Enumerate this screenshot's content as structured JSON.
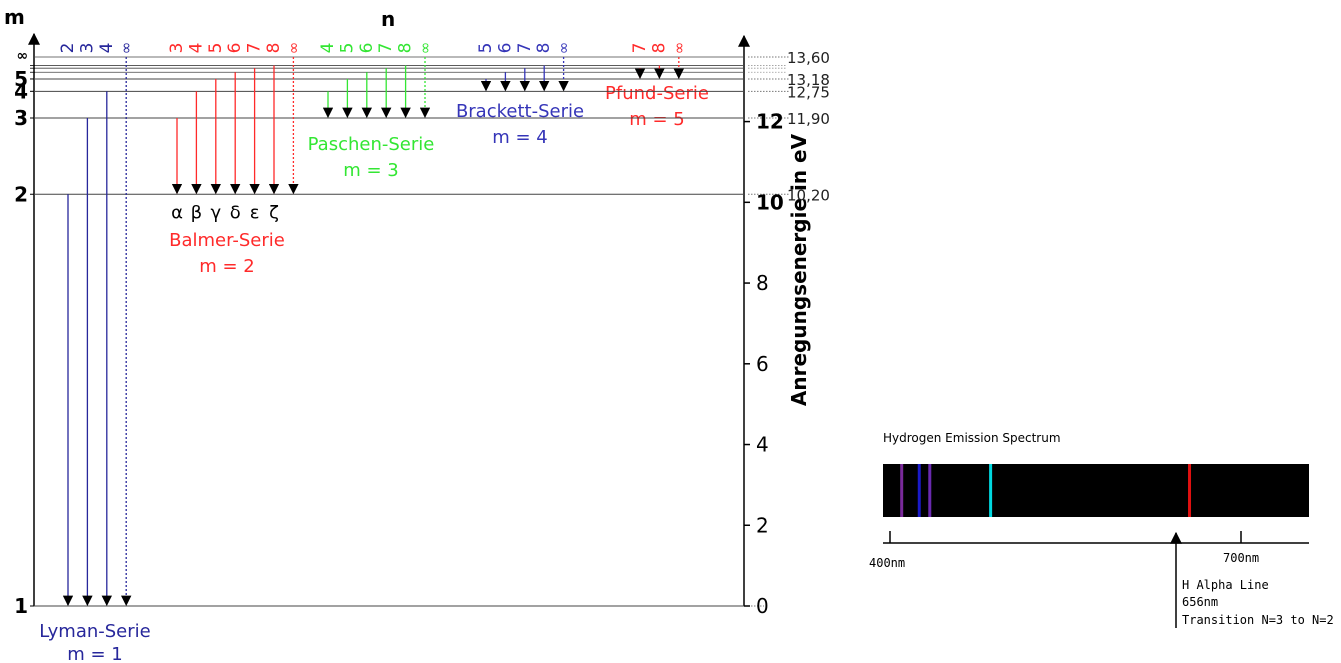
{
  "colors": {
    "lyman": "#27279b",
    "balmer": "#ff2a2a",
    "paschen": "#33e633",
    "brackett": "#3535b8",
    "pfund": "#ff2a2a",
    "axis": "#000000",
    "levels": "#444444",
    "dotted": "#777777",
    "spectrum_bg": "#000000"
  },
  "header": {
    "m_label": "m",
    "n_label": "n"
  },
  "levels": [
    {
      "m": "1",
      "energy": 0
    },
    {
      "m": "2",
      "energy": 10.2
    },
    {
      "m": "3",
      "energy": 11.9
    },
    {
      "m": "4",
      "energy": 12.75
    },
    {
      "m": "5",
      "energy": 13.18
    },
    {
      "m": "∞",
      "energy": 13.6
    }
  ],
  "energy_labels": [
    "13,60",
    "13,18",
    "12,75",
    "11,90",
    "10,20"
  ],
  "axis": {
    "label": "Anregungsenergie in eV",
    "min": 0,
    "max": 13.6,
    "ticks": [
      "0",
      "2",
      "4",
      "6",
      "8",
      "10",
      "12"
    ]
  },
  "series": [
    {
      "key": "lyman",
      "name": "Lyman-Serie",
      "m_label": "m = 1",
      "lower": 1,
      "uppers": [
        "2",
        "3",
        "4",
        "∞"
      ]
    },
    {
      "key": "balmer",
      "name": "Balmer-Serie",
      "m_label": "m = 2",
      "lower": 2,
      "uppers": [
        "3",
        "4",
        "5",
        "6",
        "7",
        "8",
        "∞"
      ],
      "greek": [
        "α",
        "β",
        "γ",
        "δ",
        "ε",
        "ζ"
      ]
    },
    {
      "key": "paschen",
      "name": "Paschen-Serie",
      "m_label": "m = 3",
      "lower": 3,
      "uppers": [
        "4",
        "5",
        "6",
        "7",
        "8",
        "∞"
      ]
    },
    {
      "key": "brackett",
      "name": "Brackett-Serie",
      "m_label": "m = 4",
      "lower": 4,
      "uppers": [
        "5",
        "6",
        "7",
        "8",
        "∞"
      ]
    },
    {
      "key": "pfund",
      "name": "Pfund-Serie",
      "m_label": "m = 5",
      "lower": 5,
      "uppers": [
        "7",
        "8",
        "∞"
      ]
    }
  ],
  "spectrum": {
    "title": "Hydrogen Emission Spectrum",
    "range_nm": [
      400,
      730
    ],
    "tick_labels": [
      "400nm",
      "700nm"
    ],
    "lines": [
      {
        "nm": 410,
        "color": "#7a2a9a"
      },
      {
        "nm": 434,
        "color": "#6a2ab0"
      },
      {
        "nm": 486,
        "color": "#00d8e0"
      },
      {
        "nm": 656,
        "color": "#e01010"
      },
      {
        "nm": 425,
        "color": "#1a1ac8"
      }
    ],
    "callout": [
      "H Alpha Line",
      "656nm",
      "Transition N=3 to N=2"
    ]
  }
}
